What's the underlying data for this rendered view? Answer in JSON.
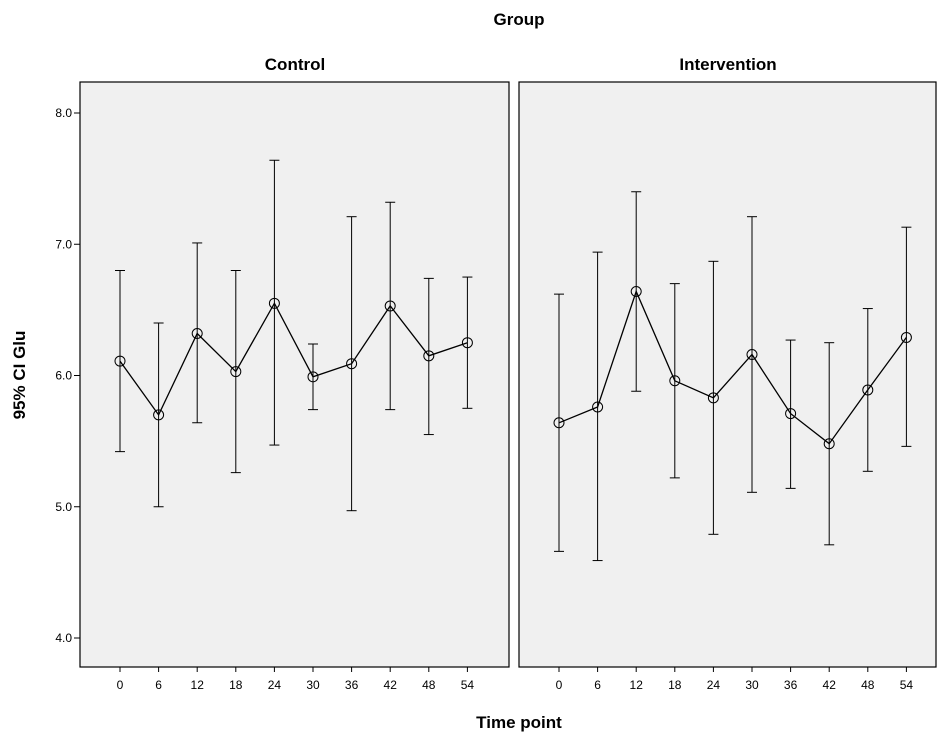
{
  "chart_data": {
    "type": "line",
    "title": "Group",
    "xlabel": "Time point",
    "ylabel": "95% CI Glu",
    "ylim": [
      4.0,
      8.0
    ],
    "yticks": [
      "4.0",
      "5.0",
      "6.0",
      "7.0",
      "8.0"
    ],
    "categories": [
      "0",
      "6",
      "12",
      "18",
      "24",
      "30",
      "36",
      "42",
      "48",
      "54"
    ],
    "grid": false,
    "panels": [
      {
        "name": "Control",
        "mean": [
          6.11,
          5.7,
          6.32,
          6.03,
          6.55,
          5.99,
          6.09,
          6.53,
          6.15,
          6.25
        ],
        "lower": [
          5.42,
          5.0,
          5.64,
          5.26,
          5.47,
          5.74,
          4.97,
          5.74,
          5.55,
          5.75
        ],
        "upper": [
          6.8,
          6.4,
          7.01,
          6.8,
          7.64,
          6.24,
          7.21,
          7.32,
          6.74,
          6.75
        ]
      },
      {
        "name": "Intervention",
        "mean": [
          5.64,
          5.76,
          6.64,
          5.96,
          5.83,
          6.16,
          5.71,
          5.48,
          5.89,
          6.29
        ],
        "lower": [
          4.66,
          4.59,
          5.88,
          5.22,
          4.79,
          5.11,
          5.14,
          4.71,
          5.27,
          5.46
        ],
        "upper": [
          6.62,
          6.94,
          7.4,
          6.7,
          6.87,
          7.21,
          6.27,
          6.25,
          6.51,
          7.13
        ]
      }
    ],
    "colors": {
      "panel_bg": "#f0f0f0",
      "line": "#000000",
      "frame": "#000000"
    }
  }
}
